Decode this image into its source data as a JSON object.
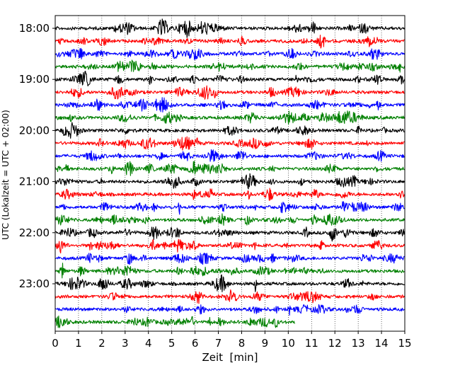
{
  "chart_data": {
    "type": "line",
    "title": "",
    "xlabel": "Zeit  [min]",
    "ylabel": "UTC (Lokalzeit = UTC + 02:00)",
    "xlim": [
      0,
      15
    ],
    "x_ticks": [
      0,
      1,
      2,
      3,
      4,
      5,
      6,
      7,
      8,
      9,
      10,
      11,
      12,
      13,
      14,
      15
    ],
    "y_tick_labels": [
      "18:00",
      "19:00",
      "20:00",
      "21:00",
      "22:00",
      "23:00"
    ],
    "trace_interval_minutes": 15,
    "first_trace_start": "18:00",
    "grid": "vertical dotted lines at each minute",
    "color_cycle": [
      "#000000",
      "#ff0000",
      "#0000ff",
      "#008000"
    ],
    "series": [
      {
        "start": "18:00",
        "end_minute": 15
      },
      {
        "start": "18:15",
        "end_minute": 15
      },
      {
        "start": "18:30",
        "end_minute": 15
      },
      {
        "start": "18:45",
        "end_minute": 15
      },
      {
        "start": "19:00",
        "end_minute": 15
      },
      {
        "start": "19:15",
        "end_minute": 15
      },
      {
        "start": "19:30",
        "end_minute": 15
      },
      {
        "start": "19:45",
        "end_minute": 15
      },
      {
        "start": "20:00",
        "end_minute": 15
      },
      {
        "start": "20:15",
        "end_minute": 15
      },
      {
        "start": "20:30",
        "end_minute": 15
      },
      {
        "start": "20:45",
        "end_minute": 15
      },
      {
        "start": "21:00",
        "end_minute": 15
      },
      {
        "start": "21:15",
        "end_minute": 15
      },
      {
        "start": "21:30",
        "end_minute": 15
      },
      {
        "start": "21:45",
        "end_minute": 15
      },
      {
        "start": "22:00",
        "end_minute": 15
      },
      {
        "start": "22:15",
        "end_minute": 15
      },
      {
        "start": "22:30",
        "end_minute": 15
      },
      {
        "start": "22:45",
        "end_minute": 15
      },
      {
        "start": "23:00",
        "end_minute": 15
      },
      {
        "start": "23:15",
        "end_minute": 15
      },
      {
        "start": "23:30",
        "end_minute": 15
      },
      {
        "start": "23:45",
        "end_minute": 10.3
      }
    ]
  }
}
